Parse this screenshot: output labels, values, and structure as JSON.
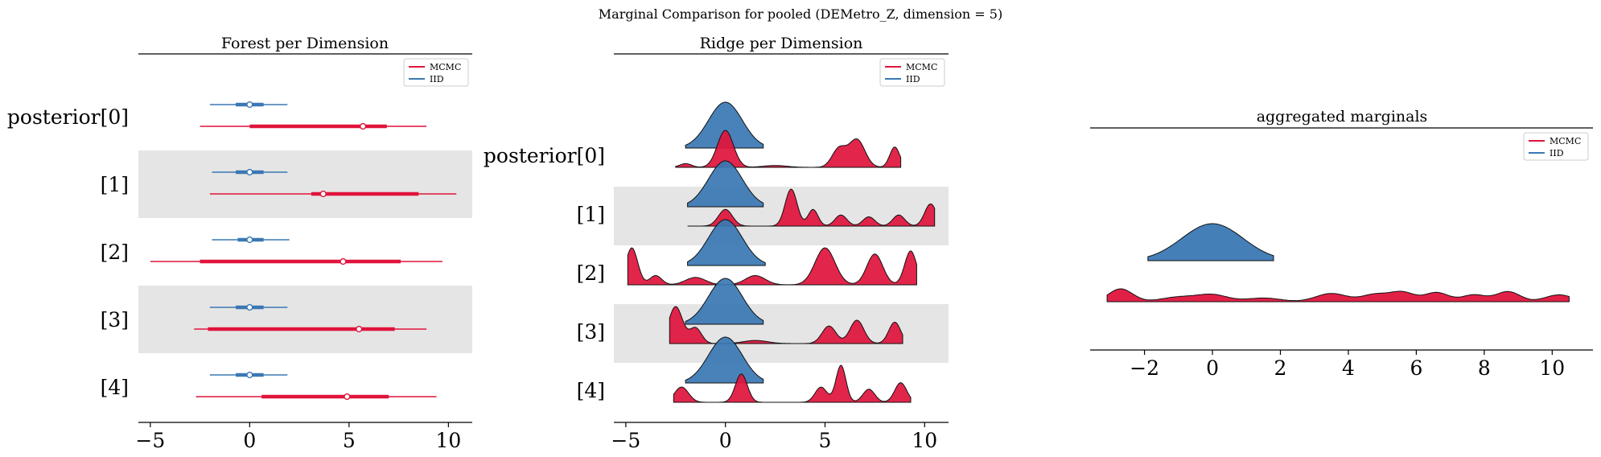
{
  "figure": {
    "suptitle": "Marginal Comparison for pooled (DEMetro_Z, dimension = 5)"
  },
  "legend": {
    "entries": [
      {
        "label": "MCMC",
        "color": "#e0143c"
      },
      {
        "label": "IID",
        "color": "#3a78b4"
      }
    ]
  },
  "colors": {
    "mcmc": "#e0143c",
    "iid": "#3a78b4",
    "band": "#e5e5e5"
  },
  "chart_data": [
    {
      "type": "forest",
      "title": "Forest per Dimension",
      "xlabel": "",
      "ylabel": "",
      "xlim": [
        -5.6,
        11.2
      ],
      "xticks": [
        -5,
        0,
        5,
        10
      ],
      "xtick_labels": [
        "−5",
        "0",
        "5",
        "10"
      ],
      "categories": [
        "posterior[0]",
        "[1]",
        "[2]",
        "[3]",
        "[4]"
      ],
      "shaded_rows": [
        1,
        3
      ],
      "series": [
        {
          "name": "MCMC",
          "rows": [
            {
              "hdi94": [
                -2.5,
                8.9
              ],
              "hdi50": [
                0.0,
                6.9
              ],
              "median": 5.7
            },
            {
              "hdi94": [
                -2.0,
                10.4
              ],
              "hdi50": [
                3.1,
                8.5
              ],
              "median": 3.7
            },
            {
              "hdi94": [
                -5.0,
                9.7
              ],
              "hdi50": [
                -2.5,
                7.6
              ],
              "median": 4.7
            },
            {
              "hdi94": [
                -2.8,
                8.9
              ],
              "hdi50": [
                -2.1,
                7.3
              ],
              "median": 5.5
            },
            {
              "hdi94": [
                -2.7,
                9.4
              ],
              "hdi50": [
                0.6,
                7.0
              ],
              "median": 4.9
            }
          ]
        },
        {
          "name": "IID",
          "rows": [
            {
              "hdi94": [
                -2.0,
                1.9
              ],
              "hdi50": [
                -0.7,
                0.7
              ],
              "median": 0.0
            },
            {
              "hdi94": [
                -1.9,
                1.9
              ],
              "hdi50": [
                -0.7,
                0.7
              ],
              "median": 0.0
            },
            {
              "hdi94": [
                -1.9,
                2.0
              ],
              "hdi50": [
                -0.6,
                0.7
              ],
              "median": 0.0
            },
            {
              "hdi94": [
                -2.0,
                1.9
              ],
              "hdi50": [
                -0.7,
                0.7
              ],
              "median": 0.0
            },
            {
              "hdi94": [
                -2.0,
                1.9
              ],
              "hdi50": [
                -0.7,
                0.7
              ],
              "median": 0.0
            }
          ]
        }
      ]
    },
    {
      "type": "ridgeline",
      "title": "Ridge per Dimension",
      "xlabel": "",
      "ylabel": "",
      "xlim": [
        -5.6,
        11.2
      ],
      "xticks": [
        -5,
        0,
        5,
        10
      ],
      "xtick_labels": [
        "−5",
        "0",
        "5",
        "10"
      ],
      "categories": [
        "posterior[0]",
        "[1]",
        "[2]",
        "[3]",
        "[4]"
      ],
      "shaded_rows": [
        1,
        3
      ],
      "series": [
        {
          "name": "MCMC",
          "rows": [
            {
              "range": [
                -2.5,
                8.8
              ],
              "peaks": [
                [
                  0.0,
                  1.0,
                  0.4
                ],
                [
                  -2.0,
                  0.1,
                  0.3
                ],
                [
                  2.5,
                  0.05,
                  0.6
                ],
                [
                  5.7,
                  0.5,
                  0.35
                ],
                [
                  6.6,
                  0.75,
                  0.4
                ],
                [
                  8.5,
                  0.55,
                  0.25
                ]
              ]
            },
            {
              "range": [
                -1.9,
                10.5
              ],
              "peaks": [
                [
                  0.0,
                  0.45,
                  0.35
                ],
                [
                  3.3,
                  1.0,
                  0.3
                ],
                [
                  4.4,
                  0.45,
                  0.25
                ],
                [
                  5.8,
                  0.3,
                  0.3
                ],
                [
                  7.2,
                  0.25,
                  0.3
                ],
                [
                  8.7,
                  0.3,
                  0.3
                ],
                [
                  10.3,
                  0.6,
                  0.3
                ]
              ]
            },
            {
              "range": [
                -4.9,
                9.6
              ],
              "peaks": [
                [
                  -4.7,
                  0.6,
                  0.3
                ],
                [
                  -3.5,
                  0.15,
                  0.3
                ],
                [
                  -1.5,
                  0.12,
                  0.5
                ],
                [
                  1.5,
                  0.15,
                  0.5
                ],
                [
                  5.0,
                  0.6,
                  0.5
                ],
                [
                  7.5,
                  0.5,
                  0.4
                ],
                [
                  9.3,
                  0.55,
                  0.3
                ]
              ]
            },
            {
              "range": [
                -2.8,
                8.9
              ],
              "peaks": [
                [
                  -2.5,
                  0.95,
                  0.35
                ],
                [
                  -1.5,
                  0.4,
                  0.3
                ],
                [
                  1.5,
                  0.08,
                  0.6
                ],
                [
                  5.2,
                  0.45,
                  0.35
                ],
                [
                  6.6,
                  0.6,
                  0.35
                ],
                [
                  8.5,
                  0.55,
                  0.3
                ]
              ]
            },
            {
              "range": [
                -2.6,
                9.3
              ],
              "peaks": [
                [
                  -2.2,
                  0.35,
                  0.35
                ],
                [
                  0.8,
                  0.65,
                  0.3
                ],
                [
                  4.8,
                  0.35,
                  0.3
                ],
                [
                  5.8,
                  0.85,
                  0.25
                ],
                [
                  7.2,
                  0.3,
                  0.3
                ],
                [
                  8.8,
                  0.45,
                  0.3
                ]
              ]
            }
          ]
        },
        {
          "name": "IID",
          "rows": [
            {
              "range": [
                -2.0,
                1.9
              ],
              "peaks": [
                [
                  0.0,
                  1.0,
                  0.85
                ]
              ]
            },
            {
              "range": [
                -1.9,
                1.9
              ],
              "peaks": [
                [
                  0.0,
                  1.0,
                  0.85
                ]
              ]
            },
            {
              "range": [
                -1.9,
                2.0
              ],
              "peaks": [
                [
                  0.0,
                  1.0,
                  0.85
                ]
              ]
            },
            {
              "range": [
                -2.0,
                1.9
              ],
              "peaks": [
                [
                  0.0,
                  1.0,
                  0.85
                ]
              ]
            },
            {
              "range": [
                -2.0,
                1.9
              ],
              "peaks": [
                [
                  0.0,
                  1.0,
                  0.85
                ]
              ]
            }
          ]
        }
      ]
    },
    {
      "type": "ridgeline",
      "title": "aggregated marginals",
      "xlabel": "",
      "ylabel": "",
      "xlim": [
        -3.6,
        11.2
      ],
      "xticks": [
        -2,
        0,
        2,
        4,
        6,
        8,
        10
      ],
      "xtick_labels": [
        "−2",
        "0",
        "2",
        "4",
        "6",
        "8",
        "10"
      ],
      "series": [
        {
          "name": "IID",
          "range": [
            -1.9,
            1.8
          ],
          "peaks": [
            [
              0.0,
              1.0,
              0.9
            ]
          ]
        },
        {
          "name": "MCMC",
          "range": [
            -3.1,
            10.5
          ],
          "peaks": [
            [
              -2.7,
              0.28,
              0.35
            ],
            [
              -1.0,
              0.1,
              0.5
            ],
            [
              0.0,
              0.15,
              0.45
            ],
            [
              1.5,
              0.08,
              0.5
            ],
            [
              3.5,
              0.18,
              0.45
            ],
            [
              4.8,
              0.16,
              0.4
            ],
            [
              5.6,
              0.2,
              0.35
            ],
            [
              6.6,
              0.2,
              0.35
            ],
            [
              7.7,
              0.15,
              0.35
            ],
            [
              8.7,
              0.22,
              0.35
            ],
            [
              10.2,
              0.15,
              0.4
            ]
          ]
        }
      ]
    }
  ]
}
